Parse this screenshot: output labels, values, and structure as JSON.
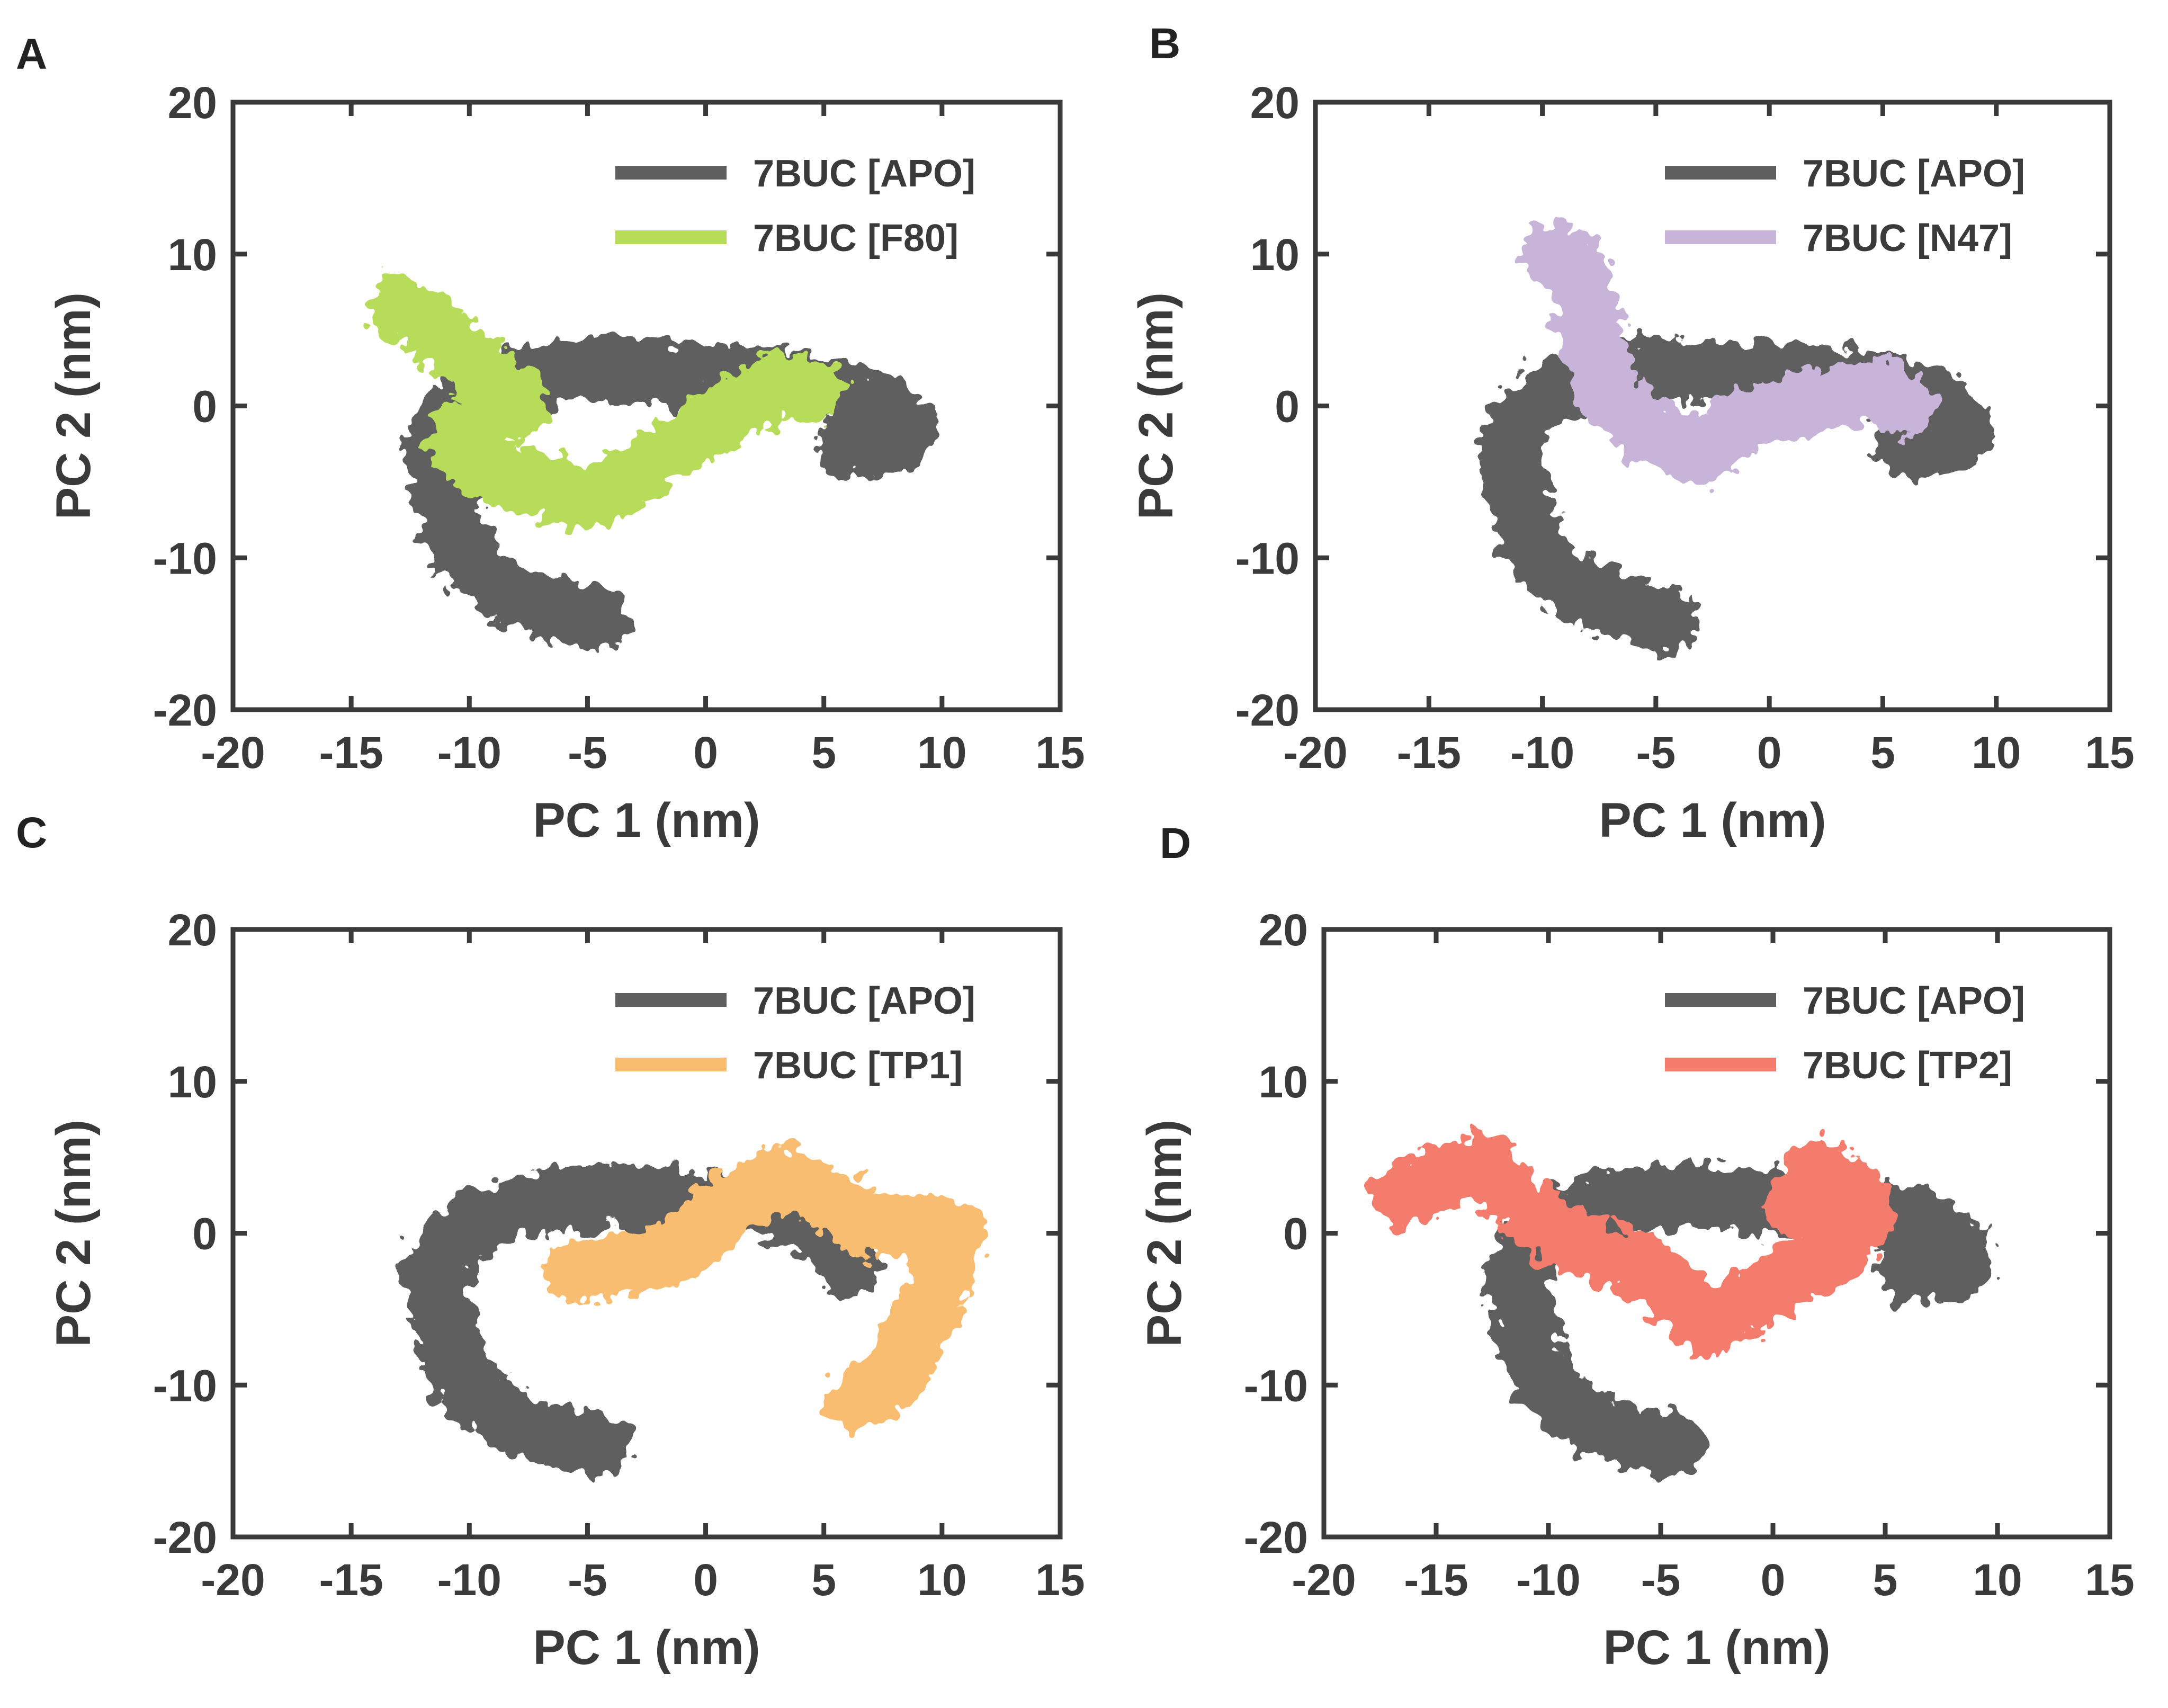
{
  "colors": {
    "axis": "#3a3a3a",
    "apo": "#5f5f5f",
    "f80": "#b7dc5a",
    "n47": "#c8b4d8",
    "tp1": "#f8bd6f",
    "tp2": "#f47c6c"
  },
  "chart_data": [
    {
      "type": "line",
      "panel_label": "A",
      "title": "",
      "xlabel": "PC 1 (nm)",
      "ylabel": "PC 2 (nm)",
      "xlim": [
        -20,
        15
      ],
      "ylim": [
        -20,
        20
      ],
      "xticks": [
        -20,
        -15,
        -10,
        -5,
        0,
        5,
        10,
        15
      ],
      "yticks": [
        -20,
        -10,
        0,
        10,
        20
      ],
      "legend_position": "top-right",
      "series": [
        {
          "name": "7BUC [APO]",
          "color": "#5f5f5f",
          "x": [
            -4.5,
            -6,
            -8,
            -9.5,
            -10.5,
            -11,
            -11.5,
            -11,
            -9.5,
            -7,
            -4,
            -1,
            2,
            4,
            6,
            7.5,
            8.5,
            8,
            6
          ],
          "y": [
            -14,
            -13.5,
            -12.5,
            -11,
            -9,
            -6,
            -3,
            -1,
            1,
            2,
            2.5,
            2,
            2,
            1.5,
            1,
            0,
            -1.5,
            -2.5,
            -2.5
          ]
        },
        {
          "name": "7BUC [F80]",
          "color": "#b7dc5a",
          "x": [
            -13,
            -11.5,
            -10,
            -9,
            -8,
            -10,
            -10.5,
            -9.5,
            -7.5,
            -5,
            -3,
            -1,
            1,
            3,
            4.5
          ],
          "y": [
            6.5,
            5,
            3,
            1.5,
            0,
            -1,
            -2.5,
            -4,
            -5,
            -6,
            -4.5,
            -2.5,
            -0.5,
            1.5,
            1
          ]
        }
      ]
    },
    {
      "type": "line",
      "panel_label": "B",
      "title": "",
      "xlabel": "PC 1 (nm)",
      "ylabel": "PC 2 (nm)",
      "xlim": [
        -20,
        15
      ],
      "ylim": [
        -20,
        20
      ],
      "xticks": [
        -20,
        -15,
        -10,
        -5,
        0,
        5,
        10,
        15
      ],
      "yticks": [
        -20,
        -10,
        0,
        10,
        20
      ],
      "legend_position": "top-right",
      "series": [
        {
          "name": "7BUC [APO]",
          "color": "#5f5f5f",
          "x": [
            -4.5,
            -6,
            -8,
            -9.5,
            -10.5,
            -11,
            -11.5,
            -11,
            -9.5,
            -7,
            -4,
            -1,
            2,
            4,
            6,
            7.5,
            8.5,
            8,
            6
          ],
          "y": [
            -14,
            -13.5,
            -12.5,
            -11,
            -9,
            -6,
            -3,
            -1,
            1,
            2,
            2.5,
            2,
            2,
            1.5,
            1,
            0,
            -1.5,
            -2.5,
            -2.5
          ]
        },
        {
          "name": "7BUC [N47]",
          "color": "#c8b4d8",
          "x": [
            -9.5,
            -8.5,
            -8,
            -7.5,
            -7,
            -5,
            -3,
            -1,
            1,
            3,
            5,
            6
          ],
          "y": [
            10,
            9,
            6,
            3,
            0.5,
            -2,
            -3,
            -1,
            0,
            0.5,
            1,
            0
          ]
        }
      ]
    },
    {
      "type": "line",
      "panel_label": "C",
      "title": "",
      "xlabel": "PC 1 (nm)",
      "ylabel": "PC 2 (nm)",
      "xlim": [
        -20,
        15
      ],
      "ylim": [
        -20,
        20
      ],
      "xticks": [
        -20,
        -15,
        -10,
        -5,
        0,
        5,
        10,
        15
      ],
      "yticks": [
        -20,
        -10,
        0,
        10,
        20
      ],
      "legend_position": "top-right",
      "series": [
        {
          "name": "7BUC [APO]",
          "color": "#5f5f5f",
          "x": [
            -4.5,
            -6,
            -8,
            -9.5,
            -10.5,
            -11,
            -11.5,
            -11,
            -9.5,
            -7,
            -4,
            -1,
            2,
            4,
            5.5,
            6
          ],
          "y": [
            -14,
            -13.5,
            -12.5,
            -11,
            -9,
            -6,
            -3,
            -1,
            1,
            2,
            2.5,
            2,
            2,
            1,
            -1,
            -2
          ]
        },
        {
          "name": "7BUC [TP1]",
          "color": "#f8bd6f",
          "x": [
            -5.5,
            -3,
            -1,
            1,
            3,
            5,
            7,
            9,
            10.5,
            10,
            9,
            8.5,
            8,
            7,
            6.5
          ],
          "y": [
            -2.5,
            -2,
            -1,
            2,
            3.5,
            2.5,
            0.5,
            0.5,
            0,
            -3,
            -6,
            -8,
            -9.5,
            -10.5,
            -11
          ]
        }
      ]
    },
    {
      "type": "line",
      "panel_label": "D",
      "title": "",
      "xlabel": "PC 1 (nm)",
      "ylabel": "PC 2 (nm)",
      "xlim": [
        -20,
        15
      ],
      "ylim": [
        -20,
        20
      ],
      "xticks": [
        -20,
        -15,
        -10,
        -5,
        0,
        5,
        10,
        15
      ],
      "yticks": [
        -20,
        -10,
        0,
        10,
        20
      ],
      "legend_position": "top-right",
      "series": [
        {
          "name": "7BUC [APO]",
          "color": "#5f5f5f",
          "x": [
            -4.5,
            -6,
            -8,
            -9.5,
            -10.5,
            -11,
            -11.5,
            -11,
            -9.5,
            -7,
            -4,
            -1,
            2,
            4,
            6,
            7.5,
            8.5,
            8,
            6
          ],
          "y": [
            -14,
            -13.5,
            -12.5,
            -11,
            -9,
            -6,
            -3,
            -1,
            1,
            2,
            2.5,
            2,
            2,
            1.5,
            1,
            0,
            -1.5,
            -2.5,
            -2.5
          ]
        },
        {
          "name": "7BUC [TP2]",
          "color": "#f47c6c",
          "x": [
            -16.5,
            -15,
            -13,
            -12,
            -10.5,
            -9,
            -7,
            -5,
            -3,
            -1,
            1,
            3,
            4,
            3.5,
            2,
            1
          ],
          "y": [
            2.5,
            3.5,
            4.5,
            3,
            1,
            -0.5,
            -1.5,
            -3,
            -6,
            -4.5,
            -2.5,
            -1,
            1,
            3,
            4,
            2
          ]
        }
      ]
    }
  ]
}
